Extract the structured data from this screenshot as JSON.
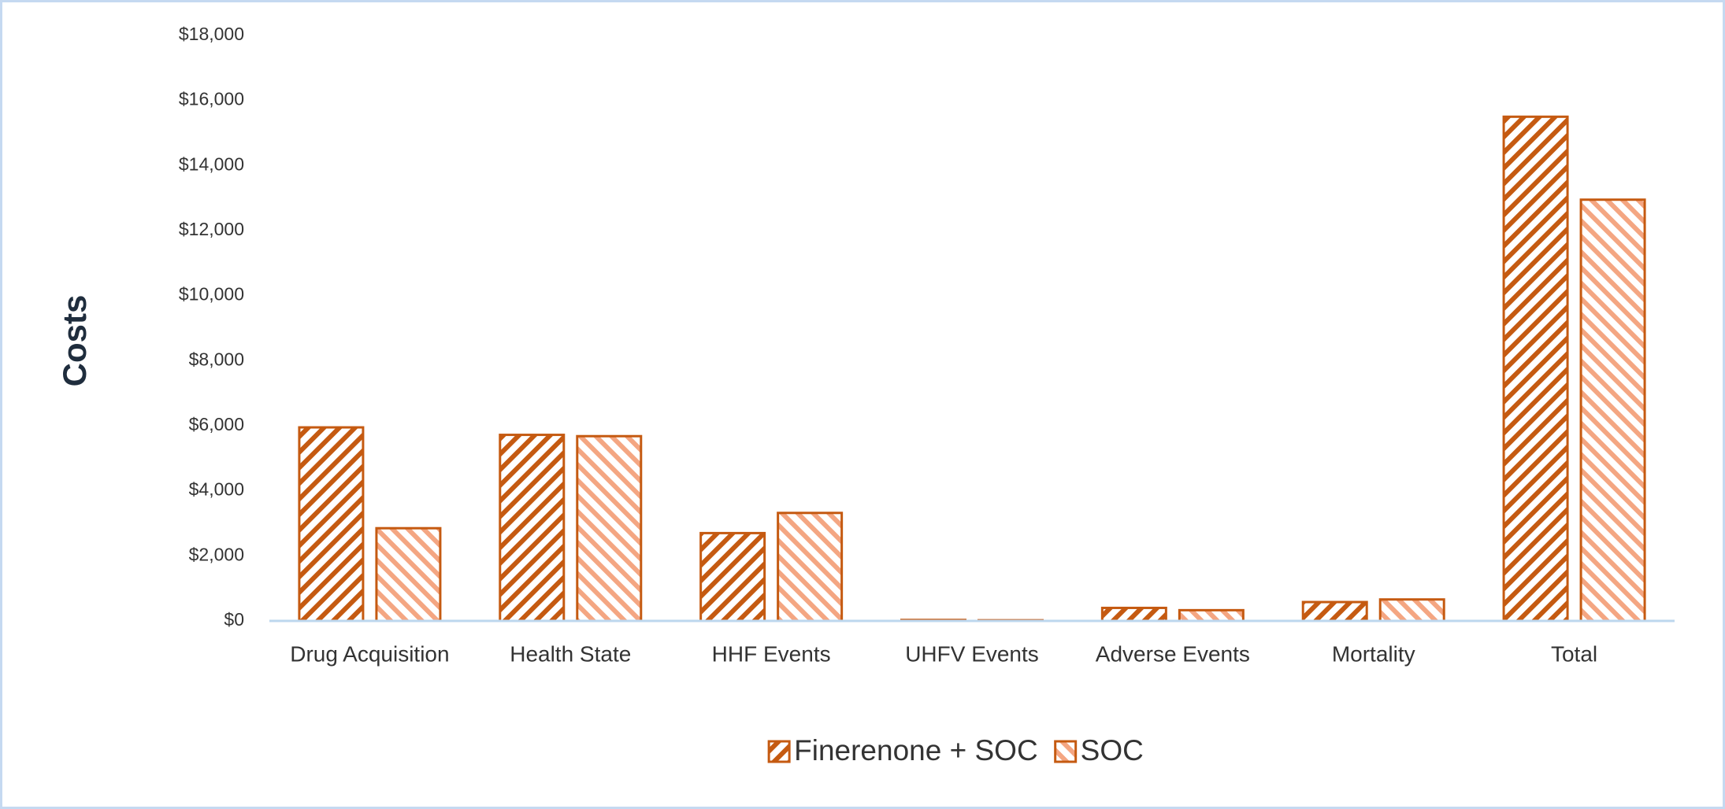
{
  "chart_data": {
    "type": "bar",
    "y_label": "Costs",
    "categories": [
      "Drug Acquisition",
      "Health State",
      "HHF Events",
      "UHFV Events",
      "Adverse Events",
      "Mortality",
      "Total"
    ],
    "series": [
      {
        "name": "Finerenone + SOC",
        "color": "#c55a11",
        "values": [
          5950,
          5720,
          2700,
          30,
          400,
          580,
          15500
        ]
      },
      {
        "name": "SOC",
        "color": "#f4a682",
        "values": [
          2850,
          5680,
          3320,
          20,
          330,
          660,
          12950
        ]
      }
    ],
    "edgecolor": "#c55a11",
    "ylim": [
      0,
      18000
    ],
    "yticks": [
      {
        "value": 0,
        "label": "$0"
      },
      {
        "value": 2000,
        "label": "$2,000"
      },
      {
        "value": 4000,
        "label": "$4,000"
      },
      {
        "value": 6000,
        "label": "$6,000"
      },
      {
        "value": 8000,
        "label": "$8,000"
      },
      {
        "value": 10000,
        "label": "$10,000"
      },
      {
        "value": 12000,
        "label": "$12,000"
      },
      {
        "value": 14000,
        "label": "$14,000"
      },
      {
        "value": 16000,
        "label": "$16,000"
      },
      {
        "value": 18000,
        "label": "$18,000"
      }
    ],
    "grid": false,
    "legend": "bottom"
  }
}
